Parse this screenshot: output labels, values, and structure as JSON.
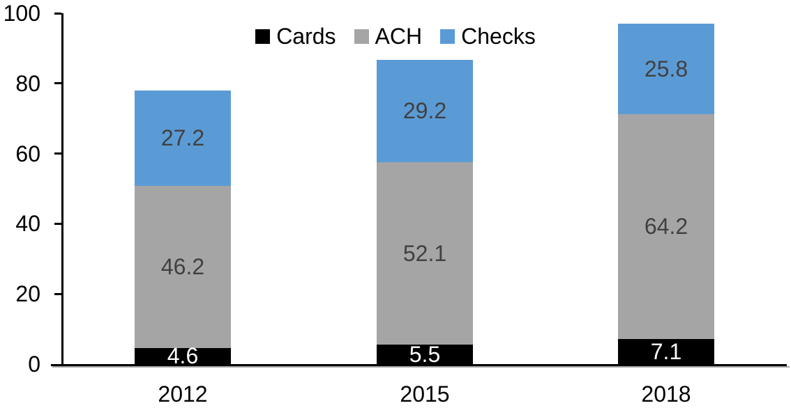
{
  "chart_data": {
    "type": "bar",
    "stacked": true,
    "title": "",
    "xlabel": "",
    "ylabel": "",
    "categories": [
      "2012",
      "2015",
      "2018"
    ],
    "series": [
      {
        "name": "Cards",
        "color": "#000000",
        "label_color": "#ffffff",
        "values": [
          4.6,
          5.5,
          7.1
        ]
      },
      {
        "name": "ACH",
        "color": "#a5a5a5",
        "label_color": "#404040",
        "values": [
          46.2,
          52.1,
          64.2
        ]
      },
      {
        "name": "Checks",
        "color": "#5b9bd5",
        "label_color": "#404040",
        "values": [
          27.2,
          29.2,
          25.8
        ]
      }
    ],
    "totals": [
      78.0,
      86.8,
      97.1
    ],
    "yticks": [
      0,
      20,
      40,
      60,
      80,
      100
    ],
    "ylim": [
      0,
      100
    ],
    "grid": false,
    "legend_position": "top",
    "axis_color": "#000000",
    "background_color": "#ffffff"
  }
}
